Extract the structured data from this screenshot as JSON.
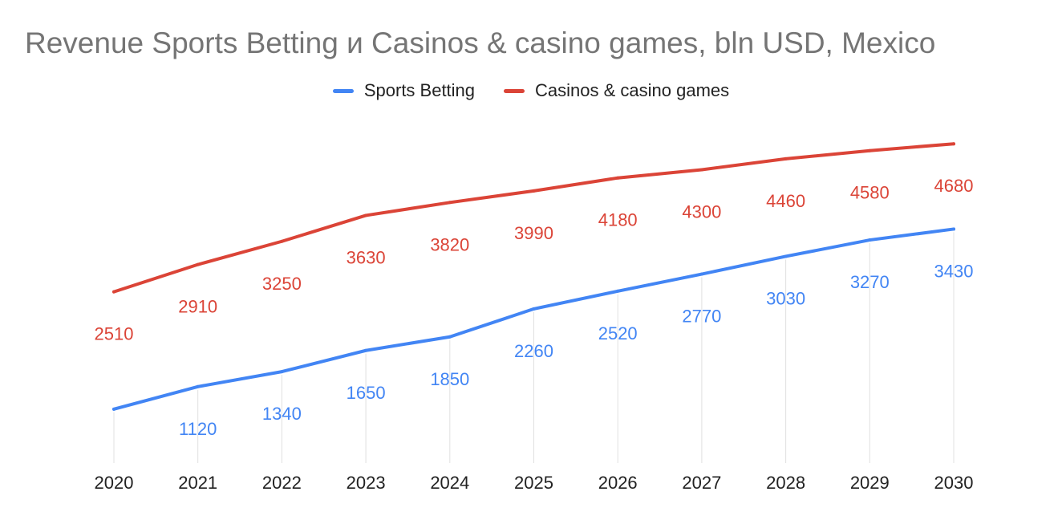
{
  "chart_data": {
    "type": "line",
    "title": "Revenue Sports Betting и Casinos & casino games, bln USD, Mexico",
    "xlabel": "",
    "ylabel": "",
    "categories": [
      "2020",
      "2021",
      "2022",
      "2023",
      "2024",
      "2025",
      "2026",
      "2027",
      "2028",
      "2029",
      "2030"
    ],
    "series": [
      {
        "name": "Sports Betting",
        "color": "#4285f4",
        "values": [
          790,
          1120,
          1340,
          1650,
          1850,
          2260,
          2520,
          2770,
          3030,
          3270,
          3430
        ],
        "labels": [
          "",
          "1120",
          "1340",
          "1650",
          "1850",
          "2260",
          "2520",
          "2770",
          "3030",
          "3270",
          "3430"
        ]
      },
      {
        "name": "Casinos & casino games",
        "color": "#db4437",
        "values": [
          2510,
          2910,
          3250,
          3630,
          3820,
          3990,
          4180,
          4300,
          4460,
          4580,
          4680
        ],
        "labels": [
          "2510",
          "2910",
          "3250",
          "3630",
          "3820",
          "3990",
          "4180",
          "4300",
          "4460",
          "4580",
          "4680"
        ]
      }
    ],
    "ylim": [
      0,
      5000
    ],
    "legend_position": "top-center",
    "grid": false,
    "axis_color": "#e0e0e0",
    "tick_label_color": "#222222"
  }
}
